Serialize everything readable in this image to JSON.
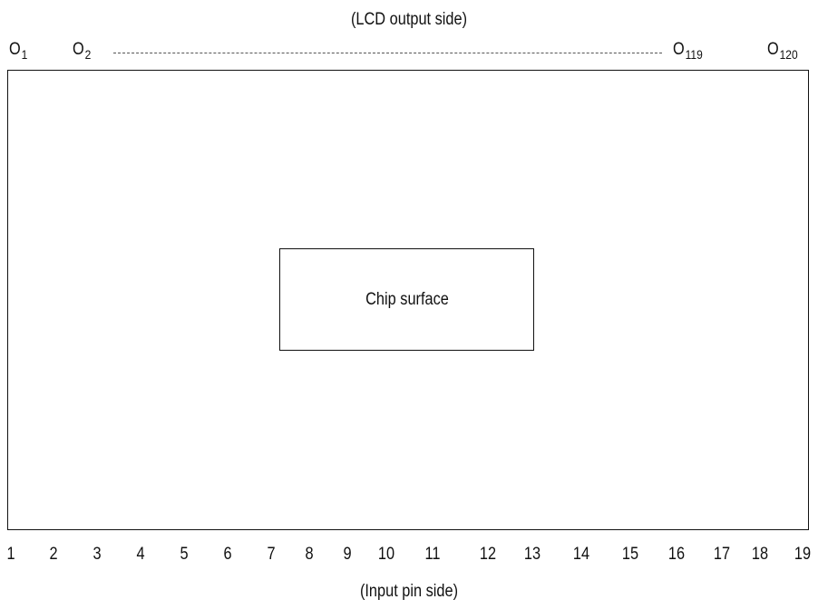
{
  "top_label": "(LCD output side)",
  "bottom_label": "(Input pin side)",
  "output_pins": [
    {
      "prefix": "O",
      "index": "1"
    },
    {
      "prefix": "O",
      "index": "2"
    },
    {
      "prefix": "O",
      "index": "119"
    },
    {
      "prefix": "O",
      "index": "120"
    }
  ],
  "chip_label": "Chip surface",
  "input_pins": [
    "1",
    "2",
    "3",
    "4",
    "5",
    "6",
    "7",
    "8",
    "9",
    "10",
    "11",
    "12",
    "13",
    "14",
    "15",
    "16",
    "17",
    "18",
    "19"
  ]
}
